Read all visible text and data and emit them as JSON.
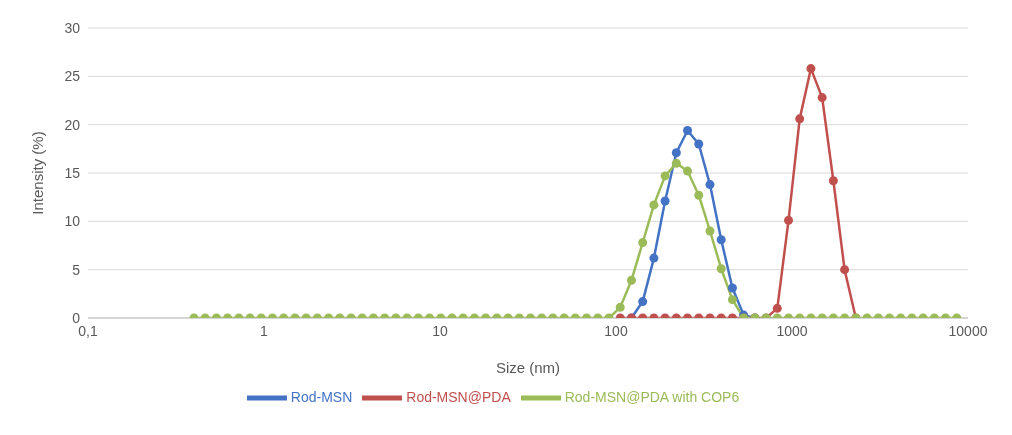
{
  "chart_data": {
    "type": "line",
    "xlabel": "Size (nm)",
    "ylabel": "Intensity (%)",
    "log": "x",
    "xlim": [
      0.1,
      10000
    ],
    "xticks": [
      {
        "value": 0.1,
        "label": "0,1"
      },
      1,
      10,
      100,
      1000,
      10000
    ],
    "ylim": [
      0,
      30
    ],
    "yticks": [
      0,
      5,
      10,
      15,
      20,
      25,
      30
    ],
    "grid": "y",
    "legend": "bottom",
    "marker": "circle",
    "line_style": "solid",
    "x": [
      0.4,
      0.4632,
      0.5365,
      0.6213,
      0.7195,
      0.8332,
      0.9649,
      1.117,
      1.294,
      1.499,
      1.736,
      2.01,
      2.328,
      2.696,
      3.122,
      3.615,
      4.187,
      4.849,
      5.615,
      6.503,
      7.531,
      8.721,
      10.1,
      11.7,
      13.54,
      15.69,
      18.17,
      21.04,
      24.36,
      28.21,
      32.67,
      37.84,
      43.82,
      50.75,
      58.77,
      68.06,
      78.82,
      91.28,
      105.7,
      122.4,
      141.8,
      164.2,
      190.1,
      220.2,
      255,
      295.3,
      342,
      396.1,
      458.7,
      531.2,
      615.1,
      712.4,
      825,
      955.4,
      1106,
      1281,
      1484,
      1718,
      1990,
      2305,
      2669,
      3091,
      3580,
      4145,
      4801,
      5560,
      6439,
      7456,
      8635
    ],
    "series": [
      {
        "name": "Rod-MSN",
        "color": "#4472c4",
        "values": [
          null,
          null,
          null,
          null,
          null,
          null,
          null,
          null,
          null,
          null,
          null,
          null,
          null,
          null,
          null,
          null,
          null,
          null,
          null,
          null,
          null,
          null,
          null,
          null,
          null,
          null,
          null,
          null,
          null,
          null,
          null,
          null,
          null,
          null,
          null,
          null,
          null,
          null,
          null,
          0,
          1.7,
          6.2,
          12.1,
          17.1,
          19.4,
          18.0,
          13.8,
          8.1,
          3.1,
          0.3,
          0,
          null,
          null,
          null,
          null,
          null,
          null,
          null,
          null,
          null,
          null,
          null,
          null,
          null,
          null,
          null,
          null,
          null,
          null
        ]
      },
      {
        "name": "Rod-MSN@PDA",
        "color": "#c0504d",
        "values": [
          null,
          null,
          null,
          null,
          null,
          null,
          null,
          null,
          null,
          null,
          null,
          null,
          null,
          null,
          null,
          null,
          null,
          null,
          null,
          null,
          null,
          null,
          null,
          null,
          null,
          null,
          null,
          null,
          null,
          null,
          null,
          null,
          null,
          null,
          null,
          null,
          null,
          null,
          0,
          0,
          0,
          0,
          0,
          0,
          0,
          0,
          0,
          0,
          0,
          0,
          0,
          0,
          1.0,
          10.1,
          20.6,
          25.8,
          22.8,
          14.2,
          5.0,
          0,
          null,
          null,
          null,
          null,
          null,
          null,
          null,
          null,
          null
        ]
      },
      {
        "name": "Rod-MSN@PDA with COP6",
        "color": "#9bbb59",
        "values": [
          0,
          0,
          0,
          0,
          0,
          0,
          0,
          0,
          0,
          0,
          0,
          0,
          0,
          0,
          0,
          0,
          0,
          0,
          0,
          0,
          0,
          0,
          0,
          0,
          0,
          0,
          0,
          0,
          0,
          0,
          0,
          0,
          0,
          0,
          0,
          0,
          0,
          0,
          1.1,
          3.9,
          7.8,
          11.7,
          14.7,
          16.0,
          15.2,
          12.7,
          9.0,
          5.1,
          1.9,
          0,
          0,
          0,
          0,
          0,
          0,
          0,
          0,
          0,
          0,
          0,
          0,
          0,
          0,
          0,
          0,
          0,
          0,
          0,
          0
        ]
      }
    ]
  }
}
